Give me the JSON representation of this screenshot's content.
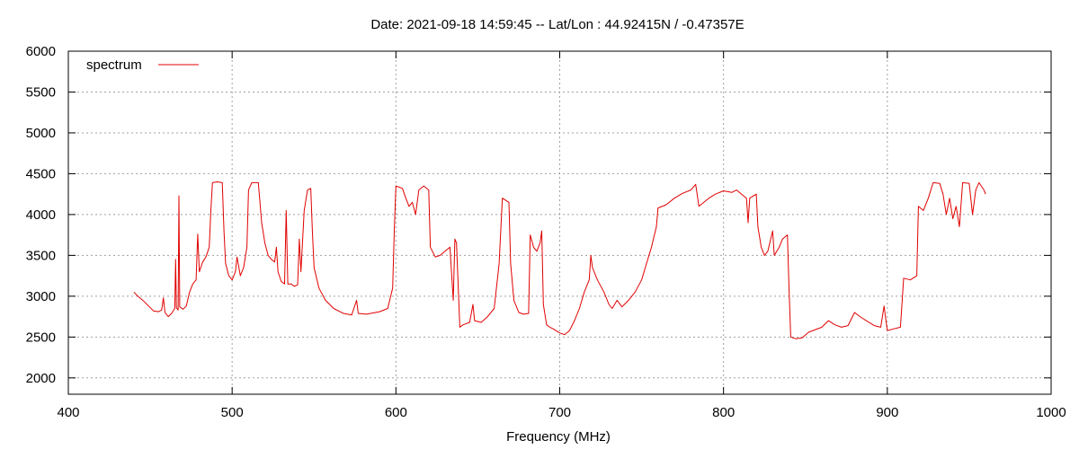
{
  "chart_data": {
    "type": "line",
    "title": "Date: 2021-09-18 14:59:45  --  Lat/Lon : 44.92415N / -0.47357E",
    "xlabel": "Frequency (MHz)",
    "ylabel": "",
    "xlim": [
      400,
      1000
    ],
    "ylim": [
      1800,
      6000
    ],
    "x_ticks": [
      400,
      500,
      600,
      700,
      800,
      900,
      1000
    ],
    "y_ticks": [
      2000,
      2500,
      3000,
      3500,
      4000,
      4500,
      5000,
      5500,
      6000
    ],
    "grid": true,
    "legend_position": "top-left",
    "series": [
      {
        "name": "spectrum",
        "color": "#e00000",
        "points": [
          [
            440,
            3050
          ],
          [
            443,
            2990
          ],
          [
            446,
            2940
          ],
          [
            449,
            2880
          ],
          [
            452,
            2820
          ],
          [
            455,
            2810
          ],
          [
            457,
            2830
          ],
          [
            458,
            2980
          ],
          [
            459,
            2800
          ],
          [
            461,
            2750
          ],
          [
            463,
            2790
          ],
          [
            465,
            2850
          ],
          [
            465.5,
            3450
          ],
          [
            466,
            2860
          ],
          [
            467,
            2830
          ],
          [
            467.5,
            4230
          ],
          [
            468,
            2870
          ],
          [
            470,
            2840
          ],
          [
            472,
            2880
          ],
          [
            474,
            3050
          ],
          [
            476,
            3150
          ],
          [
            478,
            3200
          ],
          [
            479,
            3760
          ],
          [
            480,
            3300
          ],
          [
            482,
            3420
          ],
          [
            484,
            3480
          ],
          [
            486,
            3600
          ],
          [
            487,
            4050
          ],
          [
            488,
            4390
          ],
          [
            491,
            4400
          ],
          [
            494,
            4390
          ],
          [
            495,
            3800
          ],
          [
            496,
            3400
          ],
          [
            498,
            3250
          ],
          [
            500,
            3200
          ],
          [
            502,
            3300
          ],
          [
            503,
            3480
          ],
          [
            505,
            3250
          ],
          [
            507,
            3350
          ],
          [
            509,
            3600
          ],
          [
            510,
            4300
          ],
          [
            512,
            4390
          ],
          [
            516,
            4390
          ],
          [
            518,
            3900
          ],
          [
            520,
            3650
          ],
          [
            522,
            3500
          ],
          [
            524,
            3450
          ],
          [
            526,
            3420
          ],
          [
            527,
            3600
          ],
          [
            528,
            3300
          ],
          [
            530,
            3180
          ],
          [
            532,
            3150
          ],
          [
            533,
            4050
          ],
          [
            534,
            3150
          ],
          [
            536,
            3150
          ],
          [
            538,
            3120
          ],
          [
            540,
            3140
          ],
          [
            541,
            3700
          ],
          [
            542,
            3300
          ],
          [
            544,
            4050
          ],
          [
            546,
            4300
          ],
          [
            548,
            4320
          ],
          [
            549,
            3800
          ],
          [
            550,
            3350
          ],
          [
            553,
            3100
          ],
          [
            557,
            2950
          ],
          [
            562,
            2850
          ],
          [
            568,
            2790
          ],
          [
            573,
            2770
          ],
          [
            576,
            2950
          ],
          [
            577,
            2790
          ],
          [
            582,
            2780
          ],
          [
            590,
            2810
          ],
          [
            595,
            2850
          ],
          [
            598,
            3100
          ],
          [
            599,
            3800
          ],
          [
            600,
            4350
          ],
          [
            604,
            4320
          ],
          [
            606,
            4200
          ],
          [
            608,
            4100
          ],
          [
            610,
            4150
          ],
          [
            612,
            4000
          ],
          [
            614,
            4300
          ],
          [
            617,
            4350
          ],
          [
            620,
            4300
          ],
          [
            621,
            3600
          ],
          [
            624,
            3480
          ],
          [
            627,
            3500
          ],
          [
            630,
            3550
          ],
          [
            633,
            3600
          ],
          [
            635,
            2950
          ],
          [
            636,
            3700
          ],
          [
            637,
            3650
          ],
          [
            639,
            2620
          ],
          [
            641,
            2650
          ],
          [
            645,
            2680
          ],
          [
            647,
            2900
          ],
          [
            648,
            2700
          ],
          [
            652,
            2680
          ],
          [
            656,
            2750
          ],
          [
            660,
            2850
          ],
          [
            663,
            3400
          ],
          [
            665,
            4200
          ],
          [
            669,
            4150
          ],
          [
            670,
            3400
          ],
          [
            672,
            2950
          ],
          [
            675,
            2800
          ],
          [
            678,
            2780
          ],
          [
            681,
            2790
          ],
          [
            682,
            3750
          ],
          [
            684,
            3600
          ],
          [
            686,
            3550
          ],
          [
            688,
            3650
          ],
          [
            689,
            3800
          ],
          [
            690,
            2900
          ],
          [
            692,
            2650
          ],
          [
            694,
            2620
          ],
          [
            696,
            2600
          ],
          [
            700,
            2550
          ],
          [
            703,
            2530
          ],
          [
            706,
            2580
          ],
          [
            709,
            2700
          ],
          [
            712,
            2850
          ],
          [
            715,
            3050
          ],
          [
            718,
            3200
          ],
          [
            719,
            3500
          ],
          [
            720,
            3350
          ],
          [
            723,
            3200
          ],
          [
            727,
            3050
          ],
          [
            730,
            2900
          ],
          [
            732,
            2850
          ],
          [
            735,
            2950
          ],
          [
            738,
            2870
          ],
          [
            742,
            2950
          ],
          [
            746,
            3050
          ],
          [
            750,
            3200
          ],
          [
            753,
            3400
          ],
          [
            756,
            3600
          ],
          [
            759,
            3850
          ],
          [
            760,
            4080
          ],
          [
            765,
            4120
          ],
          [
            770,
            4200
          ],
          [
            775,
            4260
          ],
          [
            780,
            4300
          ],
          [
            783,
            4370
          ],
          [
            785,
            4100
          ],
          [
            788,
            4150
          ],
          [
            791,
            4200
          ],
          [
            795,
            4250
          ],
          [
            800,
            4290
          ],
          [
            805,
            4270
          ],
          [
            808,
            4300
          ],
          [
            811,
            4250
          ],
          [
            814,
            4200
          ],
          [
            815,
            3900
          ],
          [
            816,
            4200
          ],
          [
            820,
            4250
          ],
          [
            821,
            3850
          ],
          [
            823,
            3600
          ],
          [
            825,
            3500
          ],
          [
            827,
            3550
          ],
          [
            830,
            3800
          ],
          [
            831,
            3500
          ],
          [
            834,
            3600
          ],
          [
            836,
            3700
          ],
          [
            839,
            3750
          ],
          [
            840,
            3100
          ],
          [
            841,
            2500
          ],
          [
            844,
            2480
          ],
          [
            848,
            2490
          ],
          [
            852,
            2560
          ],
          [
            856,
            2590
          ],
          [
            860,
            2620
          ],
          [
            864,
            2700
          ],
          [
            868,
            2650
          ],
          [
            872,
            2620
          ],
          [
            876,
            2640
          ],
          [
            880,
            2800
          ],
          [
            884,
            2740
          ],
          [
            888,
            2690
          ],
          [
            892,
            2640
          ],
          [
            896,
            2620
          ],
          [
            898,
            2880
          ],
          [
            900,
            2580
          ],
          [
            904,
            2600
          ],
          [
            908,
            2620
          ],
          [
            910,
            3220
          ],
          [
            914,
            3200
          ],
          [
            918,
            3250
          ],
          [
            919,
            4100
          ],
          [
            922,
            4050
          ],
          [
            925,
            4200
          ],
          [
            928,
            4390
          ],
          [
            932,
            4380
          ],
          [
            934,
            4250
          ],
          [
            936,
            4000
          ],
          [
            938,
            4200
          ],
          [
            940,
            3950
          ],
          [
            942,
            4100
          ],
          [
            944,
            3850
          ],
          [
            946,
            4390
          ],
          [
            950,
            4380
          ],
          [
            952,
            4000
          ],
          [
            954,
            4300
          ],
          [
            956,
            4390
          ],
          [
            959,
            4300
          ],
          [
            960,
            4250
          ]
        ]
      }
    ]
  }
}
